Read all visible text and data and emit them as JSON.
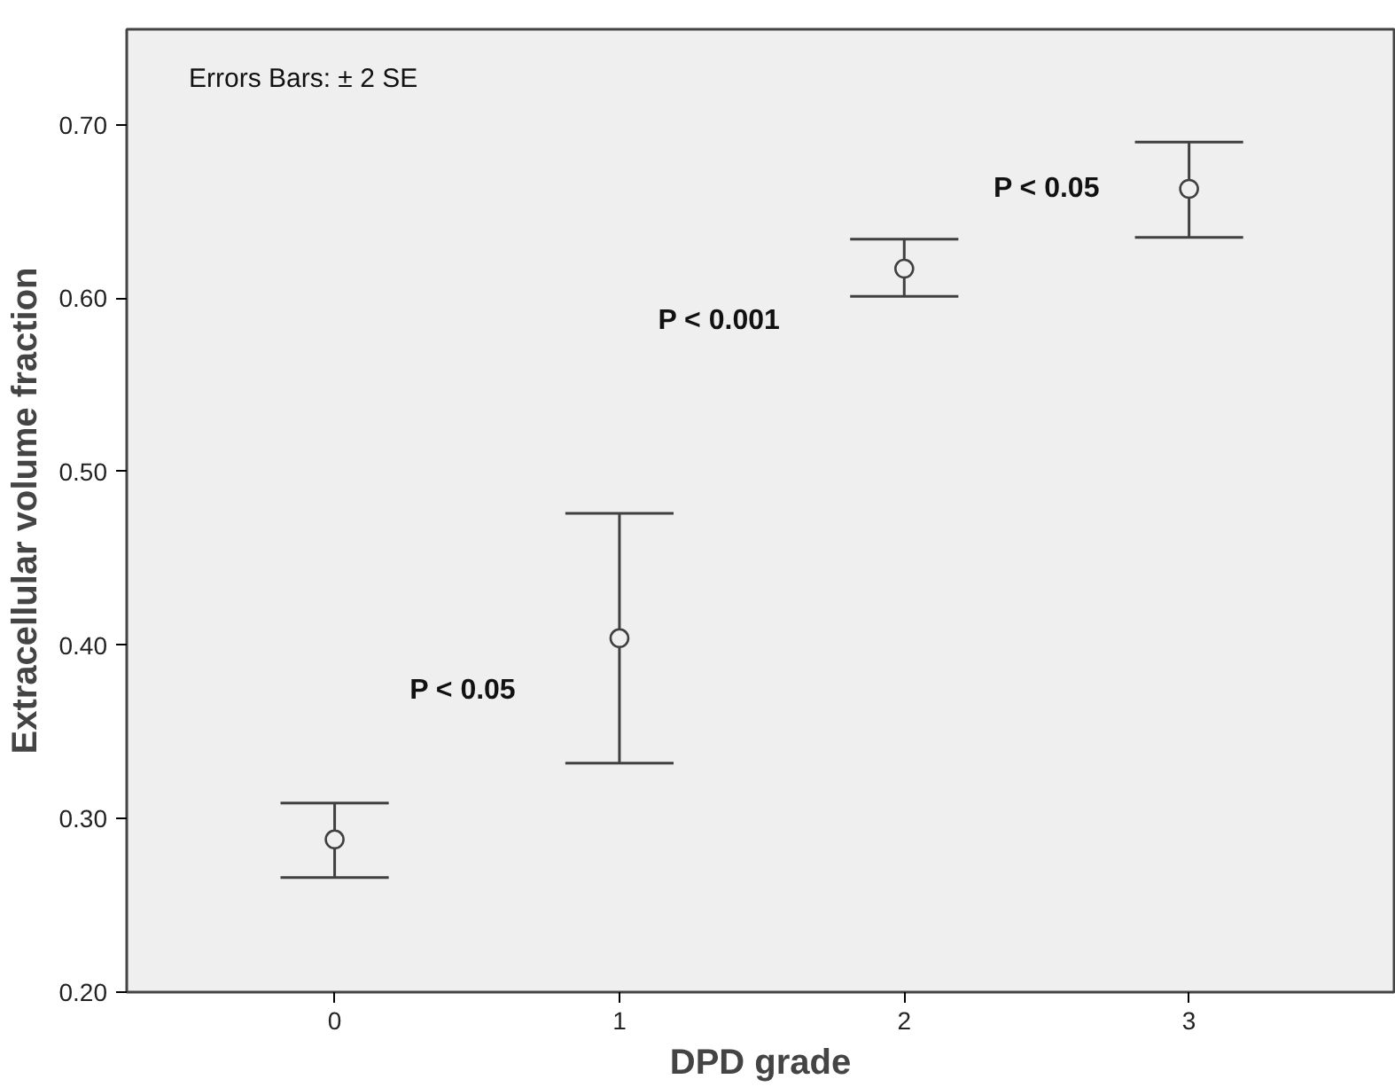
{
  "chart_data": {
    "type": "scatter",
    "xlabel": "DPD grade",
    "ylabel": "Extracellular volume fraction",
    "x": [
      0,
      1,
      2,
      3
    ],
    "values": [
      0.288,
      0.404,
      0.617,
      0.663
    ],
    "errors": [
      [
        0.266,
        0.309
      ],
      [
        0.332,
        0.476
      ],
      [
        0.601,
        0.634
      ],
      [
        0.635,
        0.69
      ]
    ],
    "color": "#404040",
    "marker": "circle",
    "grid": false,
    "xlim": [
      -0.73,
      3.72
    ],
    "xticks": [
      0,
      1,
      2,
      3
    ],
    "ylim": [
      0.2,
      0.755
    ],
    "yticks": [
      {
        "value": 0.2,
        "label": "0.20"
      },
      {
        "value": 0.3,
        "label": "0.30"
      },
      {
        "value": 0.4,
        "label": "0.40"
      },
      {
        "value": 0.5,
        "label": "0.50"
      },
      {
        "value": 0.6,
        "label": "0.60"
      },
      {
        "value": 0.7,
        "label": "0.70"
      }
    ],
    "annotations": [
      "Errors Bars: ± 2 SE",
      "P < 0.05",
      "P < 0.001",
      "P < 0.05"
    ]
  }
}
